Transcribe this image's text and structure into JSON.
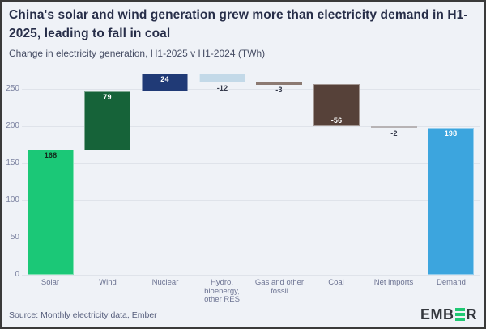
{
  "frame": {
    "background": "#eff2f7",
    "border_color": "#3a3a3a"
  },
  "chart_data": {
    "type": "bar",
    "subtype": "waterfall",
    "title": "China's solar and wind generation grew more than electricity demand in H1-2025, leading to fall in coal",
    "subtitle": "Change in electricity generation, H1-2025 v H1-2024 (TWh)",
    "xlabel": "",
    "ylabel": "",
    "categories": [
      "Solar",
      "Wind",
      "Nuclear",
      "Hydro, bioenergy, other RES",
      "Gas and other fossil",
      "Coal",
      "Net imports",
      "Demand"
    ],
    "category_lines": [
      "Solar",
      "Wind",
      "Nuclear",
      "Hydro,\nbioenergy,\nother RES",
      "Gas and other\nfossil",
      "Coal",
      "Net imports",
      "Demand"
    ],
    "values": [
      168,
      79,
      24,
      -12,
      -3,
      -56,
      -2,
      198
    ],
    "value_labels": [
      "168",
      "79",
      "24",
      "-12",
      "-3",
      "-56",
      "-2",
      "198"
    ],
    "bar_kinds": [
      "relative",
      "relative",
      "relative",
      "relative",
      "relative",
      "relative",
      "relative",
      "total"
    ],
    "bar_colors": [
      "#1BC877",
      "#166339",
      "#203A76",
      "#C3D9E8",
      "#8C7A72",
      "#564139",
      "#B7B3B5",
      "#3CA5DE"
    ],
    "label_colors": [
      "#12291B",
      "#FFFFFF",
      "#FFFFFF",
      "#34394A",
      "#34394A",
      "#FFFFFF",
      "#34394A",
      "#FFFFFF"
    ],
    "label_placements": [
      "inside-top",
      "inside-top",
      "inside-top",
      "below",
      "below",
      "inside-bottom",
      "below",
      "inside-top"
    ],
    "yticks": [
      0,
      50,
      100,
      150,
      200,
      250
    ],
    "ylim": [
      0,
      275
    ],
    "grid": true,
    "gridline_color": "#dfe3ea",
    "ytick_color": "#7b82a0",
    "xtick_color": "#6c7392",
    "legend": "none"
  },
  "footer": {
    "source": "Source: Monthly electricity data, Ember",
    "logo": {
      "left": "EMB",
      "right": "R",
      "accent_color": "#1FC873",
      "text_color": "#34383E"
    }
  }
}
